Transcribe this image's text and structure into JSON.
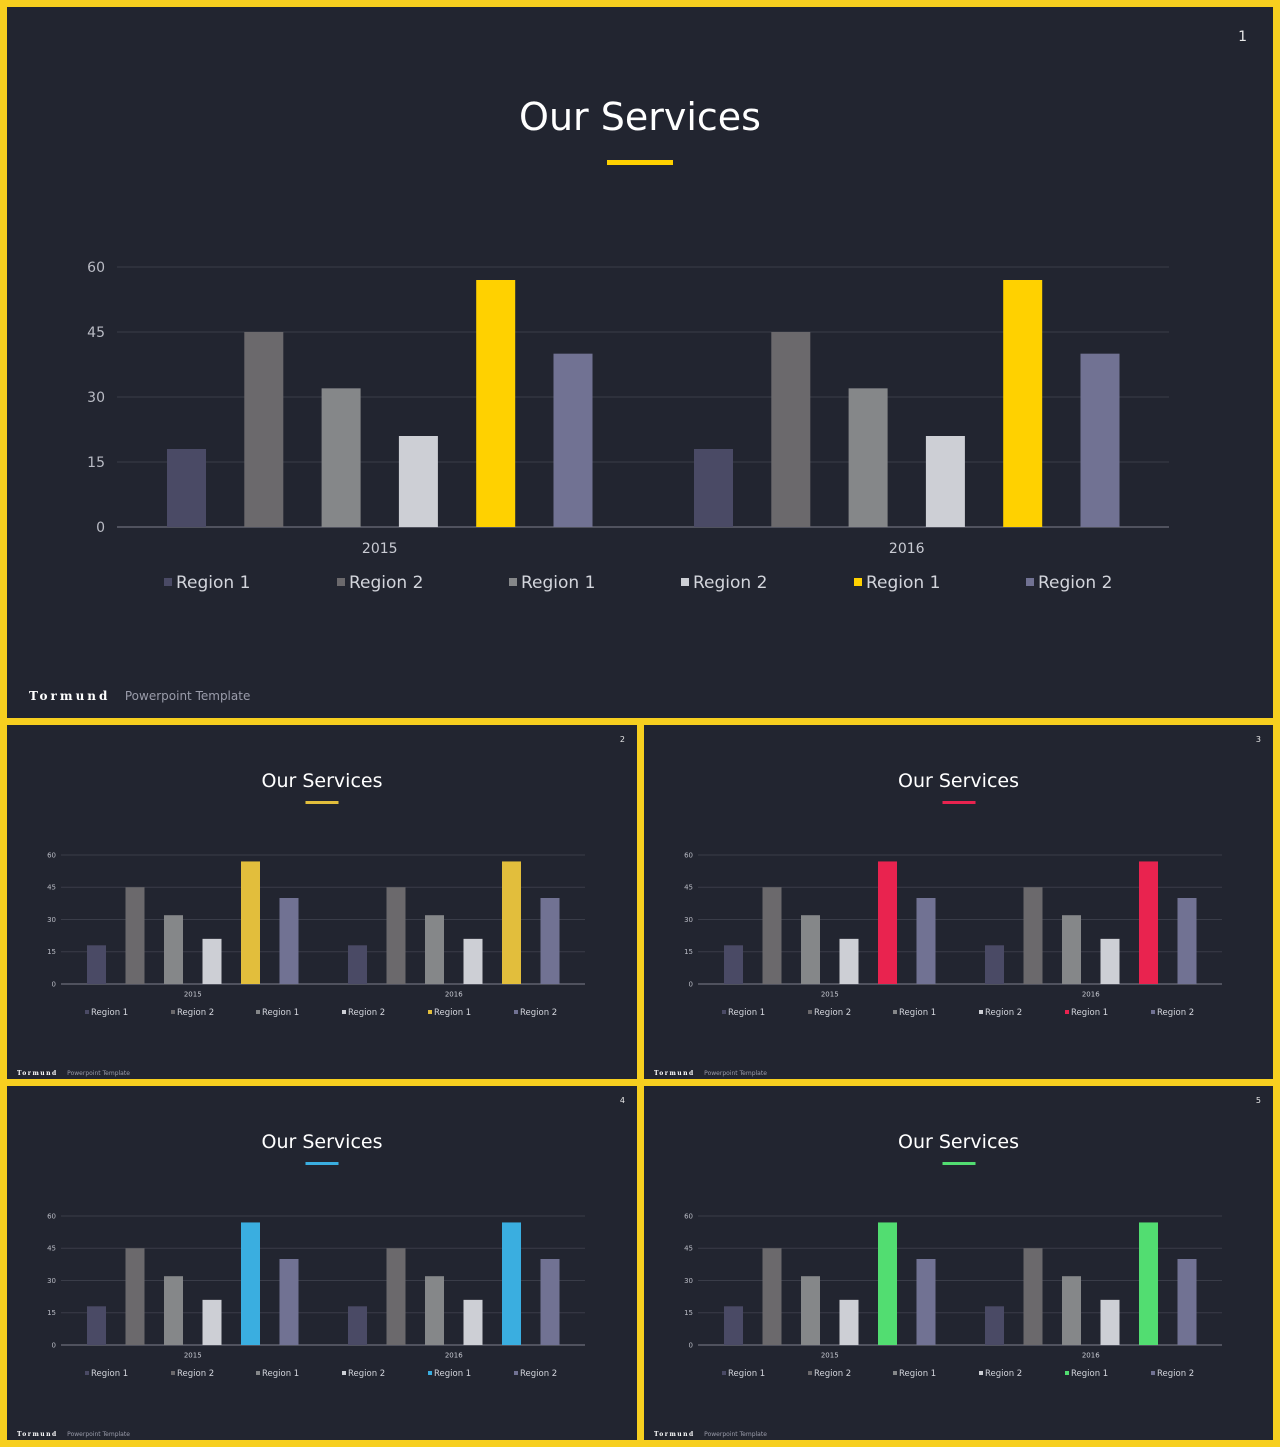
{
  "slides": [
    {
      "number": "1",
      "title": "Our Services",
      "accent": "#ffd100",
      "footer": {
        "brand": "Tormund",
        "subtitle": "Powerpoint  Template"
      }
    },
    {
      "number": "2",
      "title": "Our Services",
      "accent": "#e2be3c",
      "footer": {
        "brand": "Tormund",
        "subtitle": "Powerpoint  Template"
      }
    },
    {
      "number": "3",
      "title": "Our Services",
      "accent": "#e9234f",
      "footer": {
        "brand": "Tormund",
        "subtitle": "Powerpoint  Template"
      }
    },
    {
      "number": "4",
      "title": "Our Services",
      "accent": "#3aaee0",
      "footer": {
        "brand": "Tormund",
        "subtitle": "Powerpoint  Template"
      }
    },
    {
      "number": "5",
      "title": "Our Services",
      "accent": "#52dd71",
      "footer": {
        "brand": "Tormund",
        "subtitle": "Powerpoint  Template"
      }
    }
  ],
  "chart_data": {
    "type": "bar",
    "categories": [
      "2015",
      "2016"
    ],
    "series": [
      {
        "name": "Region 1",
        "values": [
          18,
          18
        ],
        "color": "#4a4a65"
      },
      {
        "name": "Region 2",
        "values": [
          45,
          45
        ],
        "color": "#6b696c"
      },
      {
        "name": "Region 1",
        "values": [
          32,
          32
        ],
        "color": "#858789"
      },
      {
        "name": "Region 2",
        "values": [
          21,
          21
        ],
        "color": "#cdcfd5"
      },
      {
        "name": "Region 1",
        "values": [
          57,
          57
        ],
        "color": "accent"
      },
      {
        "name": "Region 2",
        "values": [
          40,
          40
        ],
        "color": "#717293"
      }
    ],
    "yticks": [
      0,
      15,
      30,
      45,
      60
    ],
    "ylim": [
      0,
      60
    ],
    "grid": true,
    "legend": "bottom"
  }
}
